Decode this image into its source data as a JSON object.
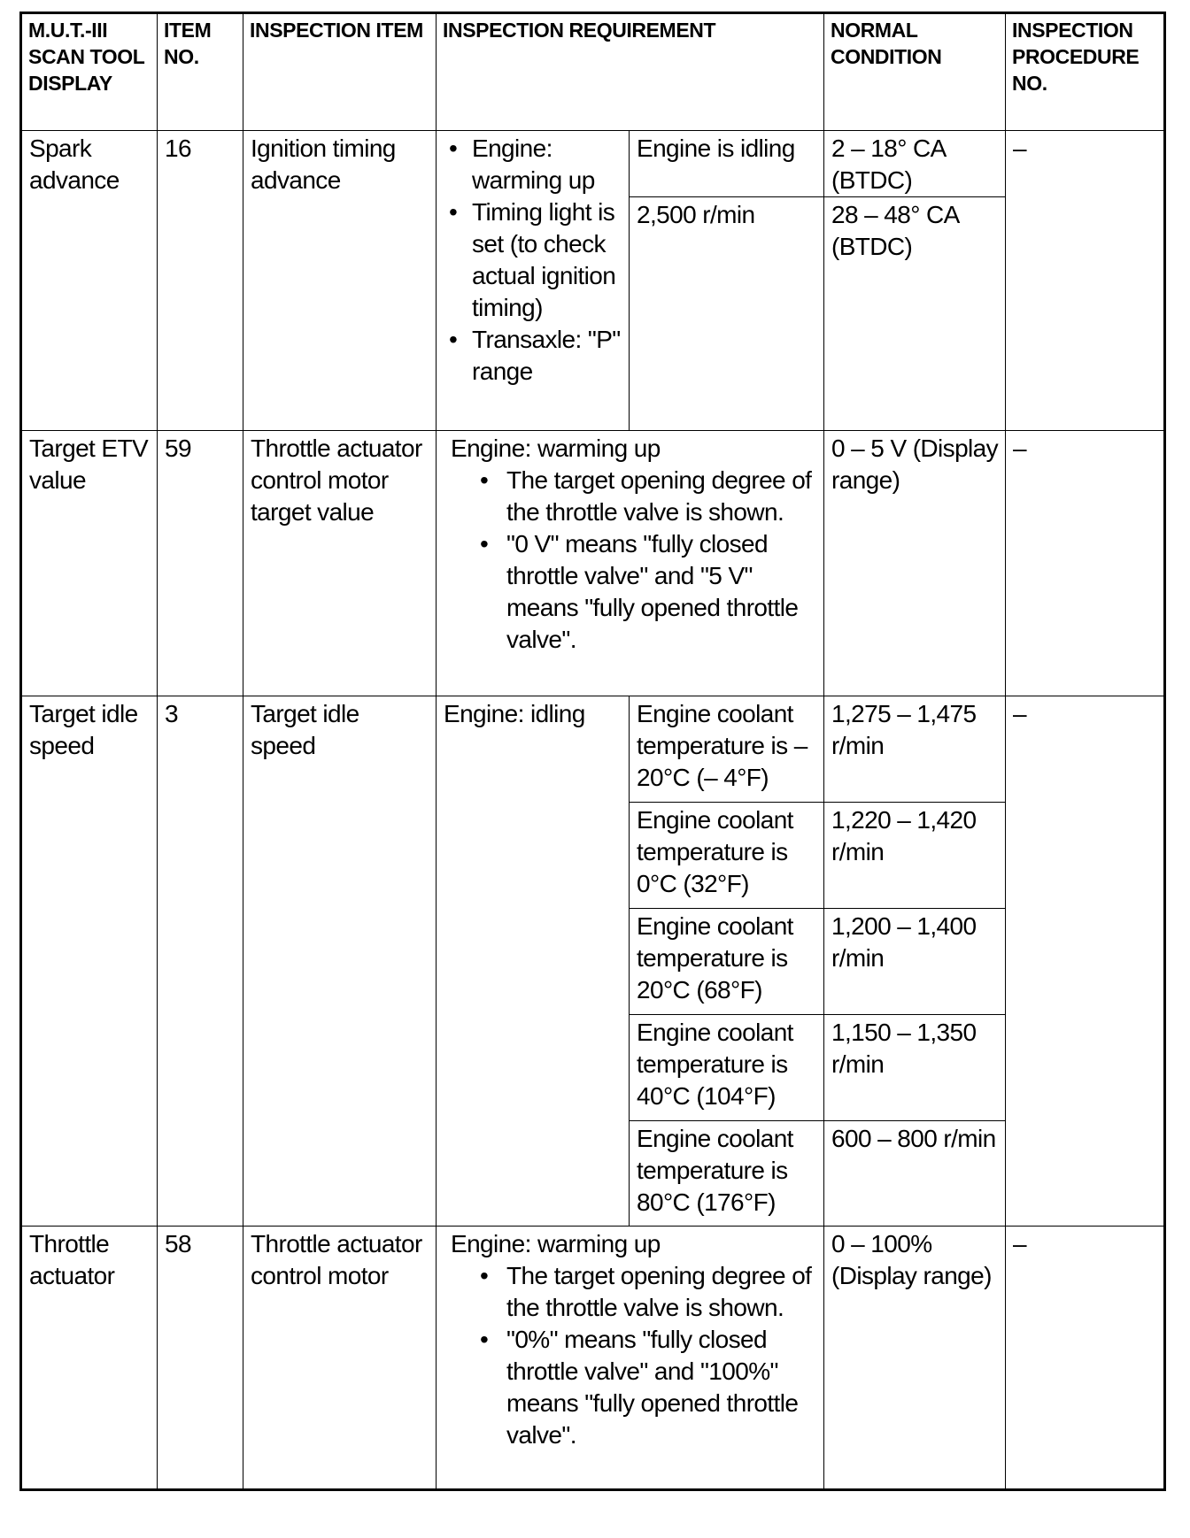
{
  "headers": [
    "M.U.T.-III SCAN TOOL DISPLAY",
    "ITEM NO.",
    "INSPECTION ITEM",
    "INSPECTION REQUIREMENT",
    "NORMAL CONDITION",
    "INSPECTION PROCEDURE NO."
  ],
  "rows": {
    "spark": {
      "display": "Spark advance",
      "item_no": "16",
      "item": "Ignition timing advance",
      "requirements": [
        "Engine: warming up",
        "Timing light is set (to check actual ignition timing)",
        "Transaxle: \"P\" range"
      ],
      "conditions": [
        {
          "condition": "Engine is idling",
          "normal": "2 – 18° CA (BTDC)"
        },
        {
          "condition": "2,500 r/min",
          "normal": "28 – 48° CA (BTDC)"
        }
      ],
      "procedure": "–"
    },
    "etv": {
      "display": "Target ETV value",
      "item_no": "59",
      "item": "Throttle actuator control motor target value",
      "req_title": "Engine: warming up",
      "requirements": [
        "The target opening degree of the throttle valve is shown.",
        "\"0 V\" means \"fully closed throttle valve\" and \"5 V\" means \"fully opened throttle valve\"."
      ],
      "normal": "0 – 5 V (Display range)",
      "procedure": "–"
    },
    "idle": {
      "display": "Target idle speed",
      "item_no": "3",
      "item": "Target idle speed",
      "requirement": "Engine: idling",
      "conditions": [
        {
          "condition": "Engine coolant temperature is – 20°C (– 4°F)",
          "normal": "1,275 – 1,475 r/min"
        },
        {
          "condition": "Engine coolant temperature is 0°C (32°F)",
          "normal": "1,220 – 1,420 r/min"
        },
        {
          "condition": "Engine coolant temperature is 20°C (68°F)",
          "normal": "1,200 – 1,400 r/min"
        },
        {
          "condition": "Engine coolant temperature is 40°C (104°F)",
          "normal": "1,150 – 1,350 r/min"
        },
        {
          "condition": "Engine coolant temperature is 80°C (176°F)",
          "normal": "600 – 800 r/min"
        }
      ],
      "procedure": "–"
    },
    "throttle": {
      "display": "Throttle actuator",
      "item_no": "58",
      "item": "Throttle actuator control motor",
      "req_title": "Engine: warming up",
      "requirements": [
        "The target opening degree of the throttle valve is shown.",
        "\"0%\" means  \"fully closed throttle valve\" and \"100%\" means \"fully opened throttle valve\"."
      ],
      "normal": "0 – 100% (Display range)",
      "procedure": "–"
    }
  }
}
